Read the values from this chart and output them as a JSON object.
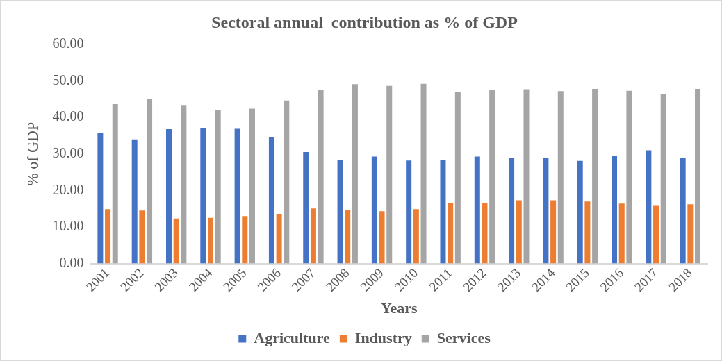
{
  "chart_data": {
    "type": "bar",
    "title": "Sectoral annual  contribution as % of GDP",
    "xlabel": "Years",
    "ylabel": "% of GDP",
    "categories": [
      "2001",
      "2002",
      "2003",
      "2004",
      "2005",
      "2006",
      "2007",
      "2008",
      "2009",
      "2010",
      "2011",
      "2012",
      "2013",
      "2014",
      "2015",
      "2016",
      "2017",
      "2018"
    ],
    "series": [
      {
        "name": "Agriculture",
        "color": "#4472c4",
        "values": [
          35.8,
          34.0,
          36.8,
          37.0,
          36.9,
          34.5,
          30.5,
          28.3,
          29.3,
          28.2,
          28.3,
          29.3,
          29.0,
          28.8,
          28.1,
          29.4,
          31.0,
          29.0
        ]
      },
      {
        "name": "Industry",
        "color": "#ed7d31",
        "values": [
          14.9,
          14.5,
          12.3,
          12.5,
          13.0,
          13.6,
          15.1,
          14.6,
          14.3,
          14.9,
          16.6,
          16.6,
          17.3,
          17.3,
          17.0,
          16.4,
          15.8,
          16.2
        ]
      },
      {
        "name": "Services",
        "color": "#a5a5a5",
        "values": [
          43.6,
          45.0,
          43.4,
          42.1,
          42.4,
          44.6,
          47.6,
          49.1,
          48.6,
          49.2,
          46.9,
          47.6,
          47.7,
          47.2,
          47.8,
          47.3,
          46.3,
          47.8
        ]
      }
    ],
    "ylim": [
      0,
      60
    ],
    "yticks": [
      {
        "value": 0,
        "label": "0.00"
      },
      {
        "value": 10,
        "label": "10.00"
      },
      {
        "value": 20,
        "label": "20.00"
      },
      {
        "value": 30,
        "label": "30.00"
      },
      {
        "value": 40,
        "label": "40.00"
      },
      {
        "value": 50,
        "label": "50.00"
      },
      {
        "value": 60,
        "label": "60.00"
      }
    ],
    "grid": false,
    "legend": "bottom"
  }
}
